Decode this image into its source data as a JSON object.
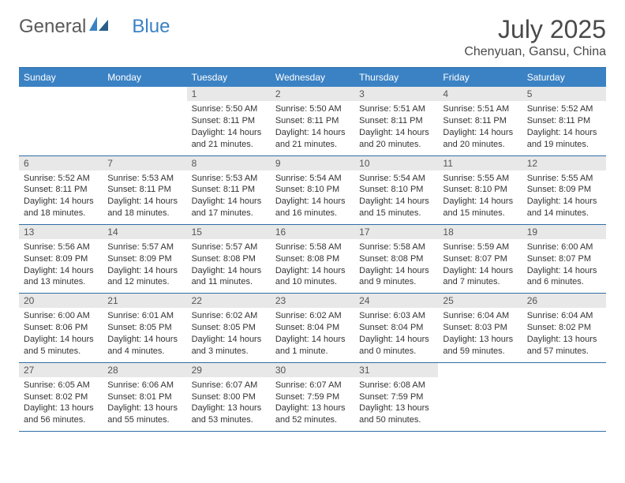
{
  "logo": {
    "text1": "General",
    "text2": "Blue"
  },
  "title": "July 2025",
  "location": "Chenyuan, Gansu, China",
  "dow": [
    "Sunday",
    "Monday",
    "Tuesday",
    "Wednesday",
    "Thursday",
    "Friday",
    "Saturday"
  ],
  "colors": {
    "header_bg": "#3b82c4",
    "header_text": "#ffffff",
    "rule": "#2f6ea6",
    "daynum_bg": "#e8e8e8",
    "text": "#333333",
    "title_color": "#4a4a4a"
  },
  "typography": {
    "title_fontsize": 32,
    "location_fontsize": 16,
    "dow_fontsize": 12,
    "body_fontsize": 11
  },
  "layout": {
    "columns": 7,
    "weeks": 5,
    "first_day_index": 2
  },
  "days": [
    {
      "n": 1,
      "rise": "5:50 AM",
      "set": "8:11 PM",
      "dl": "14 hours and 21 minutes."
    },
    {
      "n": 2,
      "rise": "5:50 AM",
      "set": "8:11 PM",
      "dl": "14 hours and 21 minutes."
    },
    {
      "n": 3,
      "rise": "5:51 AM",
      "set": "8:11 PM",
      "dl": "14 hours and 20 minutes."
    },
    {
      "n": 4,
      "rise": "5:51 AM",
      "set": "8:11 PM",
      "dl": "14 hours and 20 minutes."
    },
    {
      "n": 5,
      "rise": "5:52 AM",
      "set": "8:11 PM",
      "dl": "14 hours and 19 minutes."
    },
    {
      "n": 6,
      "rise": "5:52 AM",
      "set": "8:11 PM",
      "dl": "14 hours and 18 minutes."
    },
    {
      "n": 7,
      "rise": "5:53 AM",
      "set": "8:11 PM",
      "dl": "14 hours and 18 minutes."
    },
    {
      "n": 8,
      "rise": "5:53 AM",
      "set": "8:11 PM",
      "dl": "14 hours and 17 minutes."
    },
    {
      "n": 9,
      "rise": "5:54 AM",
      "set": "8:10 PM",
      "dl": "14 hours and 16 minutes."
    },
    {
      "n": 10,
      "rise": "5:54 AM",
      "set": "8:10 PM",
      "dl": "14 hours and 15 minutes."
    },
    {
      "n": 11,
      "rise": "5:55 AM",
      "set": "8:10 PM",
      "dl": "14 hours and 15 minutes."
    },
    {
      "n": 12,
      "rise": "5:55 AM",
      "set": "8:09 PM",
      "dl": "14 hours and 14 minutes."
    },
    {
      "n": 13,
      "rise": "5:56 AM",
      "set": "8:09 PM",
      "dl": "14 hours and 13 minutes."
    },
    {
      "n": 14,
      "rise": "5:57 AM",
      "set": "8:09 PM",
      "dl": "14 hours and 12 minutes."
    },
    {
      "n": 15,
      "rise": "5:57 AM",
      "set": "8:08 PM",
      "dl": "14 hours and 11 minutes."
    },
    {
      "n": 16,
      "rise": "5:58 AM",
      "set": "8:08 PM",
      "dl": "14 hours and 10 minutes."
    },
    {
      "n": 17,
      "rise": "5:58 AM",
      "set": "8:08 PM",
      "dl": "14 hours and 9 minutes."
    },
    {
      "n": 18,
      "rise": "5:59 AM",
      "set": "8:07 PM",
      "dl": "14 hours and 7 minutes."
    },
    {
      "n": 19,
      "rise": "6:00 AM",
      "set": "8:07 PM",
      "dl": "14 hours and 6 minutes."
    },
    {
      "n": 20,
      "rise": "6:00 AM",
      "set": "8:06 PM",
      "dl": "14 hours and 5 minutes."
    },
    {
      "n": 21,
      "rise": "6:01 AM",
      "set": "8:05 PM",
      "dl": "14 hours and 4 minutes."
    },
    {
      "n": 22,
      "rise": "6:02 AM",
      "set": "8:05 PM",
      "dl": "14 hours and 3 minutes."
    },
    {
      "n": 23,
      "rise": "6:02 AM",
      "set": "8:04 PM",
      "dl": "14 hours and 1 minute."
    },
    {
      "n": 24,
      "rise": "6:03 AM",
      "set": "8:04 PM",
      "dl": "14 hours and 0 minutes."
    },
    {
      "n": 25,
      "rise": "6:04 AM",
      "set": "8:03 PM",
      "dl": "13 hours and 59 minutes."
    },
    {
      "n": 26,
      "rise": "6:04 AM",
      "set": "8:02 PM",
      "dl": "13 hours and 57 minutes."
    },
    {
      "n": 27,
      "rise": "6:05 AM",
      "set": "8:02 PM",
      "dl": "13 hours and 56 minutes."
    },
    {
      "n": 28,
      "rise": "6:06 AM",
      "set": "8:01 PM",
      "dl": "13 hours and 55 minutes."
    },
    {
      "n": 29,
      "rise": "6:07 AM",
      "set": "8:00 PM",
      "dl": "13 hours and 53 minutes."
    },
    {
      "n": 30,
      "rise": "6:07 AM",
      "set": "7:59 PM",
      "dl": "13 hours and 52 minutes."
    },
    {
      "n": 31,
      "rise": "6:08 AM",
      "set": "7:59 PM",
      "dl": "13 hours and 50 minutes."
    }
  ],
  "labels": {
    "sunrise": "Sunrise:",
    "sunset": "Sunset:",
    "daylight": "Daylight:"
  }
}
